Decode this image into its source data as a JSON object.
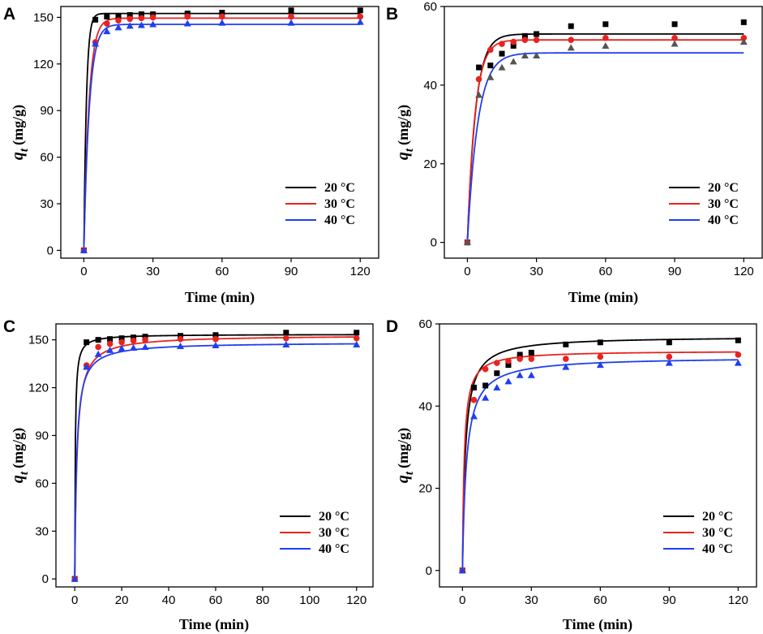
{
  "chart_data": [
    {
      "panel": "A",
      "type": "scatter",
      "xlabel": "Time (min)",
      "ylabel": "q",
      "ylabel_sub": "t",
      "ylabel_unit": "(mg/g)",
      "xlim": [
        -10,
        128
      ],
      "ylim": [
        -5,
        157
      ],
      "xticks": [
        0,
        30,
        60,
        90,
        120
      ],
      "yticks": [
        0,
        30,
        60,
        90,
        120,
        150
      ],
      "legend": "bottom-right",
      "series": [
        {
          "name": "20 °C",
          "color": "#000000",
          "marker": "square",
          "x": [
            0,
            5,
            10,
            15,
            20,
            25,
            30,
            45,
            60,
            90,
            120
          ],
          "y": [
            0,
            148.5,
            150.5,
            151,
            151.5,
            152,
            152,
            152.5,
            153,
            154.5,
            154.5
          ],
          "fit": {
            "qe": 152.5,
            "k": 0.9
          }
        },
        {
          "name": "30 °C",
          "color": "#e8231f",
          "marker": "circle",
          "x": [
            0,
            5,
            10,
            15,
            20,
            25,
            30,
            45,
            60,
            90,
            120
          ],
          "y": [
            0,
            134,
            146,
            148,
            149,
            149.5,
            150,
            150.5,
            150.5,
            150.5,
            150.5
          ],
          "fit": {
            "qe": 149.5,
            "k": 0.45
          }
        },
        {
          "name": "40 °C",
          "color": "#1f3ff0",
          "marker": "triangle",
          "x": [
            0,
            5,
            10,
            15,
            20,
            25,
            30,
            45,
            60,
            90,
            120
          ],
          "y": [
            0,
            133,
            141,
            143.5,
            144.5,
            145,
            145.5,
            146,
            146.5,
            146.5,
            147
          ],
          "fit": {
            "qe": 145.5,
            "k": 0.42
          }
        }
      ]
    },
    {
      "panel": "B",
      "type": "scatter",
      "xlabel": "Time (min)",
      "ylabel": "q",
      "ylabel_sub": "t",
      "ylabel_unit": "(mg/g)",
      "xlim": [
        -10,
        128
      ],
      "ylim": [
        -4,
        60
      ],
      "xticks": [
        0,
        30,
        60,
        90,
        120
      ],
      "yticks": [
        0,
        20,
        40,
        60
      ],
      "legend": "bottom-right",
      "series": [
        {
          "name": "20 °C",
          "color": "#000000",
          "marker": "square",
          "x": [
            0,
            5,
            10,
            15,
            20,
            25,
            30,
            45,
            60,
            90,
            120
          ],
          "y": [
            0,
            44.5,
            45,
            48,
            50,
            52.5,
            53,
            55,
            55.5,
            55.5,
            56
          ],
          "fit": {
            "qe": 53,
            "k": 0.28
          }
        },
        {
          "name": "30 °C",
          "color": "#e8231f",
          "marker": "circle",
          "x": [
            0,
            5,
            10,
            15,
            20,
            25,
            30,
            45,
            60,
            90,
            120
          ],
          "y": [
            0,
            41.5,
            49,
            50.5,
            51,
            51.5,
            51.5,
            51.5,
            52,
            52,
            52
          ],
          "fit": {
            "qe": 51.5,
            "k": 0.3
          }
        },
        {
          "name": "40 °C",
          "color": "#1f3ff0",
          "marker": "triangle",
          "marker_color": "#555555",
          "x": [
            0,
            5,
            10,
            15,
            20,
            25,
            30,
            45,
            60,
            90,
            120
          ],
          "y": [
            0,
            37.5,
            42,
            44.5,
            46,
            47.5,
            47.5,
            49.5,
            50,
            50.5,
            51
          ],
          "fit": {
            "qe": 48.2,
            "k": 0.22
          }
        }
      ]
    },
    {
      "panel": "C",
      "type": "scatter",
      "xlabel": "Time (min)",
      "ylabel": "q",
      "ylabel_sub": "t",
      "ylabel_unit": "(mg/g)",
      "xlim": [
        -8,
        127
      ],
      "ylim": [
        -5,
        160
      ],
      "xticks": [
        0,
        20,
        40,
        60,
        80,
        100,
        120
      ],
      "yticks": [
        0,
        30,
        60,
        90,
        120,
        150
      ],
      "legend": "bottom-right",
      "series": [
        {
          "name": "20 °C",
          "color": "#000000",
          "marker": "square",
          "x": [
            0,
            5,
            10,
            15,
            20,
            25,
            30,
            45,
            60,
            90,
            120
          ],
          "y": [
            0,
            148.5,
            150,
            150.5,
            151,
            151.5,
            152,
            152.5,
            153,
            154.5,
            154.5
          ],
          "fit": {
            "qe": 153.5,
            "h": 700
          }
        },
        {
          "name": "30 °C",
          "color": "#e8231f",
          "marker": "circle",
          "x": [
            0,
            5,
            10,
            15,
            20,
            25,
            30,
            45,
            60,
            90,
            120
          ],
          "y": [
            0,
            134,
            145.5,
            147.5,
            148.5,
            149.5,
            150,
            150.5,
            150.5,
            151,
            151
          ],
          "fit": {
            "qe": 153,
            "h": 160
          }
        },
        {
          "name": "40 °C",
          "color": "#1f3ff0",
          "marker": "triangle",
          "x": [
            0,
            5,
            10,
            15,
            20,
            25,
            30,
            45,
            60,
            90,
            120
          ],
          "y": [
            0,
            133,
            141,
            143.5,
            144.5,
            145,
            145.5,
            146,
            146.5,
            147,
            147
          ],
          "fit": {
            "qe": 148.5,
            "h": 180
          }
        }
      ]
    },
    {
      "panel": "D",
      "type": "scatter",
      "xlabel": "Time (min)",
      "ylabel": "q",
      "ylabel_sub": "t",
      "ylabel_unit": "(mg/g)",
      "xlim": [
        -10,
        128
      ],
      "ylim": [
        -4,
        60
      ],
      "xticks": [
        0,
        30,
        60,
        90,
        120
      ],
      "yticks": [
        0,
        20,
        40,
        60
      ],
      "legend": "bottom-right",
      "series": [
        {
          "name": "20 °C",
          "color": "#000000",
          "marker": "square",
          "x": [
            0,
            5,
            10,
            15,
            20,
            25,
            30,
            45,
            60,
            90,
            120
          ],
          "y": [
            0,
            44.5,
            45,
            48,
            50,
            52.5,
            53,
            55,
            55.5,
            55.5,
            56
          ],
          "fit": {
            "qe": 57,
            "h": 45
          }
        },
        {
          "name": "30 °C",
          "color": "#e8231f",
          "marker": "circle",
          "x": [
            0,
            5,
            10,
            15,
            20,
            25,
            30,
            45,
            60,
            90,
            120
          ],
          "y": [
            0,
            41.5,
            49,
            50.5,
            51,
            51.5,
            51.5,
            51.5,
            52,
            52,
            52.5
          ],
          "fit": {
            "qe": 53.5,
            "h": 70
          }
        },
        {
          "name": "40 °C",
          "color": "#1f3ff0",
          "marker": "triangle",
          "x": [
            0,
            5,
            10,
            15,
            20,
            25,
            30,
            45,
            60,
            90,
            120
          ],
          "y": [
            0,
            37.5,
            42,
            44.5,
            46,
            47.5,
            47.5,
            49.5,
            50,
            50.5,
            50.5
          ],
          "fit": {
            "qe": 52,
            "h": 30
          }
        }
      ]
    }
  ]
}
